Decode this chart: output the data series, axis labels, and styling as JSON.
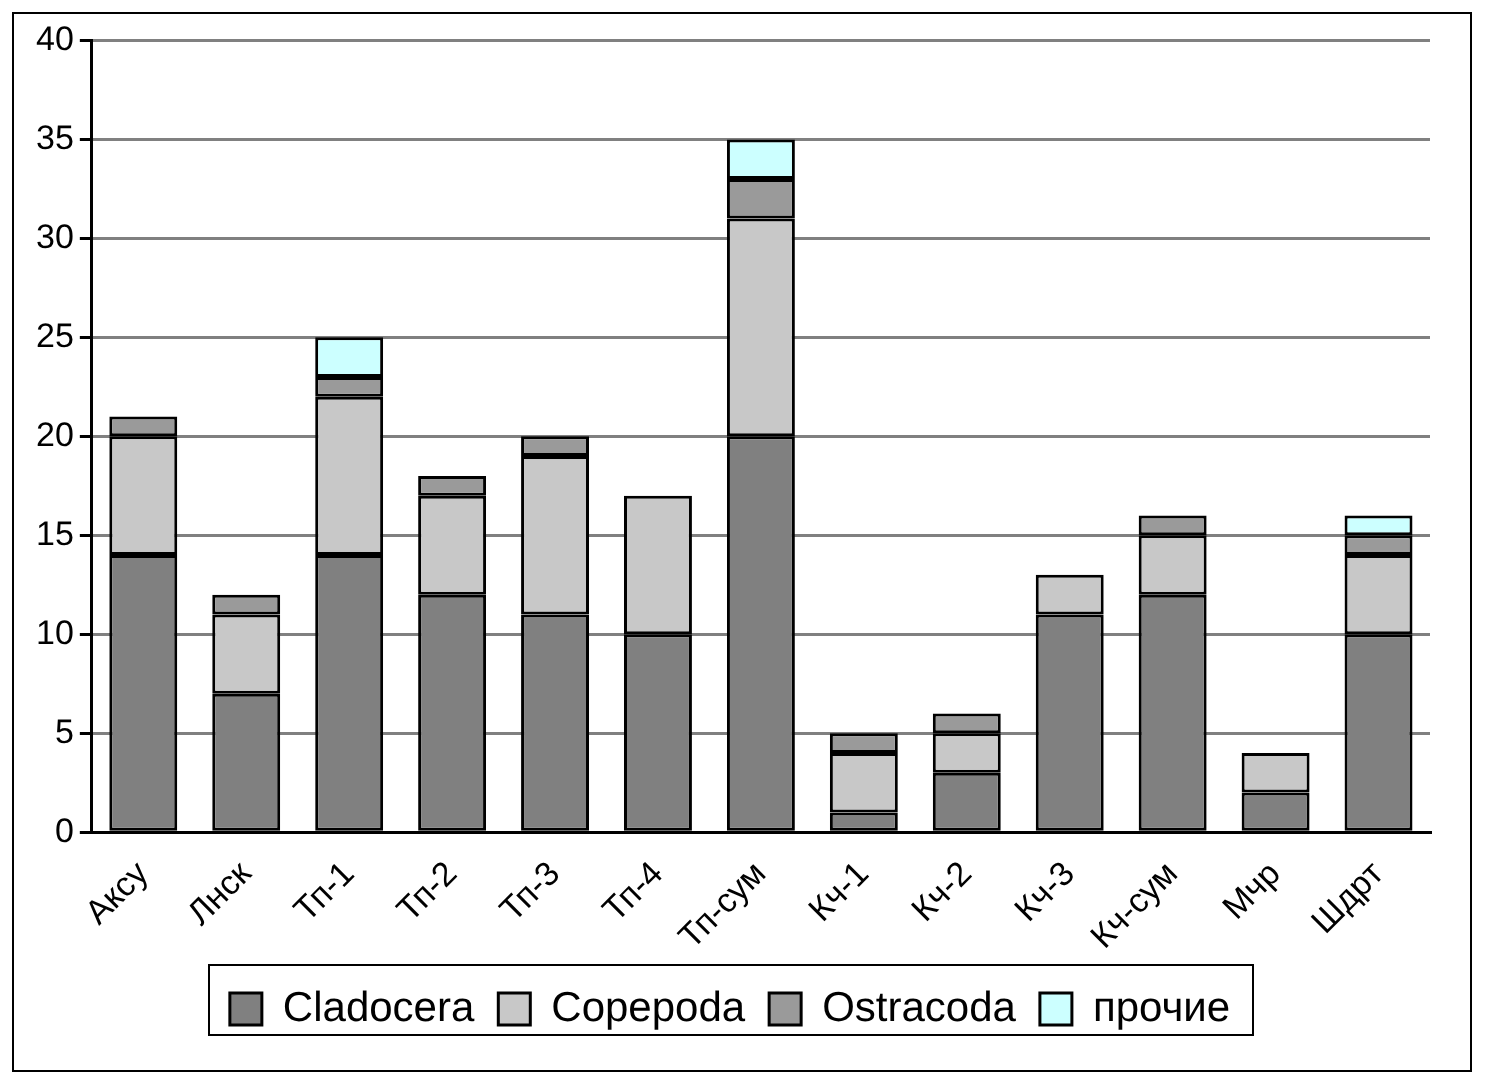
{
  "chart_data": {
    "type": "bar",
    "stacked": true,
    "categories": [
      "Аксу",
      "Лнск",
      "Тп-1",
      "Тп-2",
      "Тп-3",
      "Тп-4",
      "Тп-сум",
      "Кч-1",
      "Кч-2",
      "Кч-3",
      "Кч-сум",
      "Мчр",
      "Шдрт"
    ],
    "series": [
      {
        "name": "Cladocera",
        "color": "#808080",
        "values": [
          14,
          7,
          14,
          12,
          11,
          10,
          20,
          1,
          3,
          11,
          12,
          2,
          10
        ]
      },
      {
        "name": "Copepoda",
        "color": "#c8c8c8",
        "values": [
          6,
          4,
          8,
          5,
          8,
          7,
          11,
          3,
          2,
          2,
          3,
          2,
          4
        ]
      },
      {
        "name": "Ostracoda",
        "color": "#9a9a9a",
        "values": [
          1,
          1,
          1,
          1,
          1,
          0,
          2,
          1,
          1,
          0,
          1,
          0,
          1
        ]
      },
      {
        "name": "прочие",
        "color": "#ccffff",
        "values": [
          0,
          0,
          2,
          0,
          0,
          0,
          2,
          0,
          0,
          0,
          0,
          0,
          1
        ]
      }
    ],
    "ylim": [
      0,
      40
    ],
    "yticks": [
      0,
      5,
      10,
      15,
      20,
      25,
      30,
      35,
      40
    ],
    "grid": "y",
    "legend": "bottom"
  }
}
